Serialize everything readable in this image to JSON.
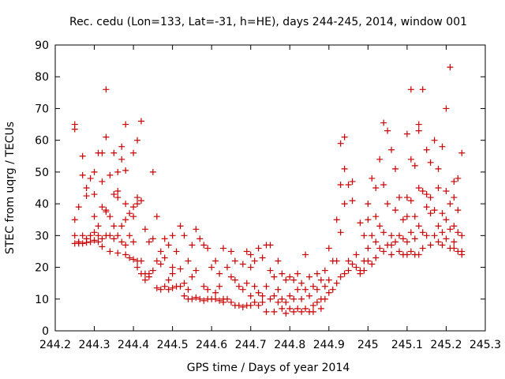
{
  "chart_data": {
    "type": "scatter",
    "title": "Rec. cedu (Lon=133, Lat=-31, h=HE), days 244-245, 2014, window 001",
    "xlabel": "GPS time / Days of year 2014",
    "ylabel": "STEC from uqrg / TECUs",
    "xlim": [
      244.2,
      245.3
    ],
    "ylim": [
      0,
      90
    ],
    "xticks": [
      "244.2",
      "244.3",
      "244.4",
      "244.5",
      "244.6",
      "244.7",
      "244.8",
      "244.9",
      "245",
      "245.1",
      "245.2",
      "245.3"
    ],
    "yticks": [
      "0",
      "10",
      "20",
      "30",
      "40",
      "50",
      "60",
      "70",
      "80",
      "90"
    ],
    "grid": false,
    "marker": "plus",
    "series_color": "#cc0000",
    "points": [
      [
        244.25,
        65
      ],
      [
        244.25,
        63.5
      ],
      [
        244.25,
        35
      ],
      [
        244.25,
        30
      ],
      [
        244.25,
        27.5
      ],
      [
        244.26,
        27.5
      ],
      [
        244.26,
        28
      ],
      [
        244.26,
        39
      ],
      [
        244.27,
        55
      ],
      [
        244.27,
        49
      ],
      [
        244.27,
        30
      ],
      [
        244.27,
        27.5
      ],
      [
        244.28,
        27.8
      ],
      [
        244.28,
        29
      ],
      [
        244.28,
        45
      ],
      [
        244.28,
        42.5
      ],
      [
        244.29,
        48
      ],
      [
        244.29,
        30
      ],
      [
        244.29,
        28
      ],
      [
        244.3,
        50
      ],
      [
        244.3,
        36
      ],
      [
        244.3,
        31
      ],
      [
        244.3,
        28.5
      ],
      [
        244.3,
        43
      ],
      [
        244.31,
        56
      ],
      [
        244.31,
        33
      ],
      [
        244.31,
        28
      ],
      [
        244.31,
        30
      ],
      [
        244.32,
        56
      ],
      [
        244.32,
        47
      ],
      [
        244.32,
        39
      ],
      [
        244.32,
        29
      ],
      [
        244.32,
        26.5
      ],
      [
        244.33,
        61
      ],
      [
        244.33,
        38
      ],
      [
        244.33,
        37.5
      ],
      [
        244.33,
        30
      ],
      [
        244.33,
        76
      ],
      [
        244.34,
        49
      ],
      [
        244.34,
        36
      ],
      [
        244.34,
        25
      ],
      [
        244.34,
        30
      ],
      [
        244.35,
        56
      ],
      [
        244.35,
        43
      ],
      [
        244.35,
        33
      ],
      [
        244.35,
        29
      ],
      [
        244.36,
        50
      ],
      [
        244.36,
        42
      ],
      [
        244.36,
        44
      ],
      [
        244.36,
        30
      ],
      [
        244.36,
        24.5
      ],
      [
        244.37,
        58
      ],
      [
        244.37,
        54
      ],
      [
        244.37,
        33
      ],
      [
        244.37,
        28
      ],
      [
        244.38,
        65
      ],
      [
        244.38,
        50.5
      ],
      [
        244.38,
        40
      ],
      [
        244.38,
        35
      ],
      [
        244.38,
        27
      ],
      [
        244.38,
        24
      ],
      [
        244.39,
        37
      ],
      [
        244.39,
        30
      ],
      [
        244.39,
        23
      ],
      [
        244.4,
        56
      ],
      [
        244.4,
        39
      ],
      [
        244.4,
        36
      ],
      [
        244.4,
        28
      ],
      [
        244.4,
        22.5
      ],
      [
        244.41,
        60
      ],
      [
        244.41,
        42
      ],
      [
        244.41,
        40
      ],
      [
        244.41,
        22
      ],
      [
        244.41,
        20
      ],
      [
        244.42,
        66
      ],
      [
        244.42,
        41
      ],
      [
        244.42,
        22
      ],
      [
        244.42,
        18
      ],
      [
        244.43,
        32
      ],
      [
        244.43,
        18
      ],
      [
        244.43,
        16
      ],
      [
        244.44,
        28
      ],
      [
        244.44,
        18
      ],
      [
        244.44,
        17
      ],
      [
        244.45,
        29
      ],
      [
        244.45,
        50
      ],
      [
        244.45,
        19
      ],
      [
        244.46,
        36
      ],
      [
        244.46,
        13.5
      ],
      [
        244.46,
        22
      ],
      [
        244.47,
        25
      ],
      [
        244.47,
        21
      ],
      [
        244.47,
        13
      ],
      [
        244.48,
        29
      ],
      [
        244.48,
        23
      ],
      [
        244.48,
        14
      ],
      [
        244.49,
        27
      ],
      [
        244.49,
        16
      ],
      [
        244.49,
        13
      ],
      [
        244.5,
        30
      ],
      [
        244.5,
        20
      ],
      [
        244.5,
        13.5
      ],
      [
        244.5,
        18
      ],
      [
        244.51,
        25
      ],
      [
        244.51,
        14
      ],
      [
        244.52,
        33
      ],
      [
        244.52,
        19.5
      ],
      [
        244.52,
        14
      ],
      [
        244.53,
        30
      ],
      [
        244.53,
        15
      ],
      [
        244.53,
        11
      ],
      [
        244.54,
        22
      ],
      [
        244.54,
        13
      ],
      [
        244.54,
        10
      ],
      [
        244.55,
        27
      ],
      [
        244.55,
        17
      ],
      [
        244.55,
        10
      ],
      [
        244.56,
        32
      ],
      [
        244.56,
        19
      ],
      [
        244.56,
        10.5
      ],
      [
        244.57,
        29
      ],
      [
        244.57,
        10
      ],
      [
        244.58,
        27
      ],
      [
        244.58,
        14
      ],
      [
        244.58,
        9.5
      ],
      [
        244.59,
        26
      ],
      [
        244.59,
        13
      ],
      [
        244.59,
        10
      ],
      [
        244.6,
        20
      ],
      [
        244.6,
        10
      ],
      [
        244.61,
        22
      ],
      [
        244.61,
        12
      ],
      [
        244.61,
        10
      ],
      [
        244.62,
        18
      ],
      [
        244.62,
        14
      ],
      [
        244.62,
        9.5
      ],
      [
        244.63,
        26
      ],
      [
        244.63,
        10
      ],
      [
        244.63,
        9
      ],
      [
        244.64,
        20
      ],
      [
        244.64,
        10
      ],
      [
        244.65,
        25
      ],
      [
        244.65,
        17
      ],
      [
        244.65,
        9
      ],
      [
        244.66,
        22
      ],
      [
        244.66,
        16
      ],
      [
        244.66,
        8
      ],
      [
        244.67,
        14
      ],
      [
        244.67,
        8
      ],
      [
        244.68,
        21
      ],
      [
        244.68,
        13
      ],
      [
        244.68,
        7.5
      ],
      [
        244.69,
        25
      ],
      [
        244.69,
        15
      ],
      [
        244.69,
        8
      ],
      [
        244.7,
        24
      ],
      [
        244.7,
        20
      ],
      [
        244.7,
        11
      ],
      [
        244.7,
        8
      ],
      [
        244.71,
        22
      ],
      [
        244.71,
        14
      ],
      [
        244.71,
        9
      ],
      [
        244.72,
        26
      ],
      [
        244.72,
        12
      ],
      [
        244.72,
        8
      ],
      [
        244.73,
        23
      ],
      [
        244.73,
        11
      ],
      [
        244.73,
        9
      ],
      [
        244.74,
        27
      ],
      [
        244.74,
        14
      ],
      [
        244.74,
        6
      ],
      [
        244.75,
        27
      ],
      [
        244.75,
        19
      ],
      [
        244.75,
        10
      ],
      [
        244.76,
        17
      ],
      [
        244.76,
        11
      ],
      [
        244.76,
        6
      ],
      [
        244.77,
        22
      ],
      [
        244.77,
        13
      ],
      [
        244.77,
        9
      ],
      [
        244.78,
        18
      ],
      [
        244.78,
        10
      ],
      [
        244.78,
        7
      ],
      [
        244.79,
        16
      ],
      [
        244.79,
        9
      ],
      [
        244.79,
        5.5
      ],
      [
        244.8,
        17
      ],
      [
        244.8,
        11
      ],
      [
        244.8,
        7
      ],
      [
        244.81,
        16
      ],
      [
        244.81,
        10
      ],
      [
        244.81,
        6
      ],
      [
        244.82,
        18
      ],
      [
        244.82,
        13
      ],
      [
        244.82,
        7
      ],
      [
        244.83,
        15
      ],
      [
        244.83,
        10
      ],
      [
        244.83,
        6
      ],
      [
        244.84,
        24
      ],
      [
        244.84,
        13
      ],
      [
        244.84,
        7
      ],
      [
        244.85,
        17
      ],
      [
        244.85,
        11
      ],
      [
        244.85,
        6
      ],
      [
        244.86,
        14
      ],
      [
        244.86,
        8
      ],
      [
        244.86,
        6
      ],
      [
        244.87,
        18
      ],
      [
        244.87,
        13
      ],
      [
        244.87,
        9
      ],
      [
        244.88,
        16
      ],
      [
        244.88,
        10
      ],
      [
        244.88,
        7
      ],
      [
        244.89,
        19
      ],
      [
        244.89,
        14
      ],
      [
        244.89,
        10
      ],
      [
        244.9,
        26
      ],
      [
        244.9,
        16
      ],
      [
        244.9,
        12
      ],
      [
        244.91,
        22
      ],
      [
        244.91,
        13
      ],
      [
        244.92,
        35
      ],
      [
        244.92,
        22
      ],
      [
        244.92,
        15
      ],
      [
        244.93,
        59
      ],
      [
        244.93,
        46
      ],
      [
        244.93,
        31
      ],
      [
        244.93,
        17
      ],
      [
        244.94,
        61
      ],
      [
        244.94,
        51
      ],
      [
        244.94,
        40
      ],
      [
        244.94,
        18
      ],
      [
        244.95,
        46
      ],
      [
        244.95,
        22
      ],
      [
        244.95,
        19
      ],
      [
        244.96,
        47
      ],
      [
        244.96,
        41
      ],
      [
        244.96,
        21
      ],
      [
        244.97,
        24
      ],
      [
        244.97,
        20
      ],
      [
        244.98,
        34
      ],
      [
        244.98,
        19
      ],
      [
        244.98,
        18
      ],
      [
        244.99,
        30
      ],
      [
        244.99,
        22
      ],
      [
        244.99,
        19
      ],
      [
        245.0,
        40
      ],
      [
        245.0,
        35
      ],
      [
        245.0,
        26
      ],
      [
        245.0,
        22
      ],
      [
        245.01,
        48
      ],
      [
        245.01,
        30
      ],
      [
        245.01,
        21
      ],
      [
        245.02,
        45
      ],
      [
        245.02,
        36
      ],
      [
        245.02,
        28
      ],
      [
        245.02,
        23
      ],
      [
        245.03,
        54
      ],
      [
        245.03,
        33
      ],
      [
        245.03,
        26
      ],
      [
        245.04,
        65.5
      ],
      [
        245.04,
        46
      ],
      [
        245.04,
        31
      ],
      [
        245.04,
        25
      ],
      [
        245.05,
        63
      ],
      [
        245.05,
        40
      ],
      [
        245.05,
        27
      ],
      [
        245.06,
        57
      ],
      [
        245.06,
        30
      ],
      [
        245.06,
        27
      ],
      [
        245.06,
        24
      ],
      [
        245.07,
        51
      ],
      [
        245.07,
        38
      ],
      [
        245.07,
        28
      ],
      [
        245.08,
        42
      ],
      [
        245.08,
        30
      ],
      [
        245.08,
        25
      ],
      [
        245.09,
        35
      ],
      [
        245.09,
        29
      ],
      [
        245.09,
        24
      ],
      [
        245.1,
        62
      ],
      [
        245.1,
        42
      ],
      [
        245.1,
        36
      ],
      [
        245.1,
        28
      ],
      [
        245.1,
        24
      ],
      [
        245.11,
        76
      ],
      [
        245.11,
        54
      ],
      [
        245.11,
        41
      ],
      [
        245.11,
        31
      ],
      [
        245.11,
        25
      ],
      [
        245.12,
        52
      ],
      [
        245.12,
        36
      ],
      [
        245.12,
        29
      ],
      [
        245.12,
        24
      ],
      [
        245.13,
        65
      ],
      [
        245.13,
        63
      ],
      [
        245.13,
        45
      ],
      [
        245.13,
        33
      ],
      [
        245.13,
        24
      ],
      [
        245.14,
        76
      ],
      [
        245.14,
        44
      ],
      [
        245.14,
        31
      ],
      [
        245.14,
        26
      ],
      [
        245.15,
        57
      ],
      [
        245.15,
        43
      ],
      [
        245.15,
        39
      ],
      [
        245.15,
        30
      ],
      [
        245.16,
        53
      ],
      [
        245.16,
        42
      ],
      [
        245.16,
        37
      ],
      [
        245.16,
        27
      ],
      [
        245.17,
        60
      ],
      [
        245.17,
        38
      ],
      [
        245.17,
        30
      ],
      [
        245.18,
        51
      ],
      [
        245.18,
        45
      ],
      [
        245.18,
        33
      ],
      [
        245.18,
        28
      ],
      [
        245.19,
        58
      ],
      [
        245.19,
        37
      ],
      [
        245.19,
        31
      ],
      [
        245.19,
        27
      ],
      [
        245.2,
        70
      ],
      [
        245.2,
        44
      ],
      [
        245.2,
        35
      ],
      [
        245.2,
        29
      ],
      [
        245.21,
        83
      ],
      [
        245.21,
        40
      ],
      [
        245.21,
        32
      ],
      [
        245.21,
        26
      ],
      [
        245.22,
        47
      ],
      [
        245.22,
        42
      ],
      [
        245.22,
        33
      ],
      [
        245.22,
        28
      ],
      [
        245.22,
        26
      ],
      [
        245.23,
        48
      ],
      [
        245.23,
        38
      ],
      [
        245.23,
        31
      ],
      [
        245.23,
        25
      ],
      [
        245.24,
        56
      ],
      [
        245.24,
        30
      ],
      [
        245.24,
        25
      ],
      [
        245.24,
        24
      ]
    ]
  }
}
